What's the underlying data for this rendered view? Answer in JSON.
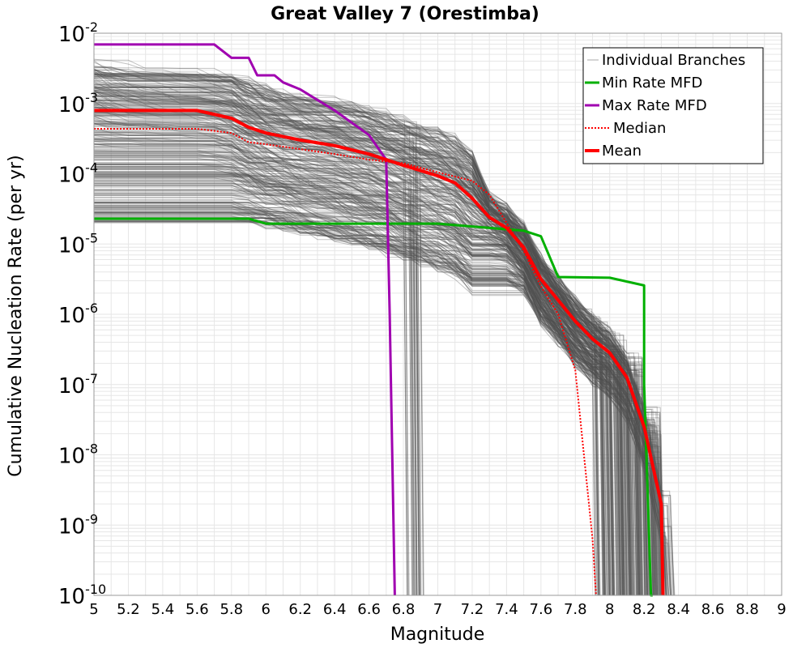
{
  "chart_data": {
    "type": "line",
    "title": "Great Valley 7 (Orestimba)",
    "xlabel": "Magnitude",
    "ylabel": "Cumulative Nucleation Rate (per yr)",
    "xlim": [
      5,
      9
    ],
    "ylim_log10": [
      -10,
      -2
    ],
    "x_ticks": [
      "5",
      "5.2",
      "5.4",
      "5.6",
      "5.8",
      "6",
      "6.2",
      "6.4",
      "6.6",
      "6.8",
      "7",
      "7.2",
      "7.4",
      "7.6",
      "7.8",
      "8",
      "8.2",
      "8.4",
      "8.6",
      "8.8",
      "9"
    ],
    "y_ticks": [
      {
        "base": "10",
        "exp": "-2"
      },
      {
        "base": "10",
        "exp": "-3"
      },
      {
        "base": "10",
        "exp": "-4"
      },
      {
        "base": "10",
        "exp": "-5"
      },
      {
        "base": "10",
        "exp": "-6"
      },
      {
        "base": "10",
        "exp": "-7"
      },
      {
        "base": "10",
        "exp": "-8"
      },
      {
        "base": "10",
        "exp": "-9"
      },
      {
        "base": "10",
        "exp": "-10"
      }
    ],
    "legend": {
      "position": "top-right",
      "entries": [
        "Individual Branches",
        "Min Rate MFD",
        "Max Rate MFD",
        "Median",
        "Mean"
      ]
    },
    "colors": {
      "branches": "#505050",
      "min": "#00b000",
      "max": "#a000b0",
      "median": "#ff0000",
      "mean": "#ff0000"
    },
    "branches": {
      "count": 360,
      "mag_start": 5.0,
      "rate_range_log10": [
        -4.7,
        -2.3
      ],
      "cluster_mags": [
        6.8,
        6.9,
        7.95,
        8.0,
        8.05,
        8.1,
        8.15,
        8.2,
        8.25,
        8.3
      ]
    },
    "series": [
      {
        "name": "Min Rate MFD",
        "x": [
          5.0,
          5.9,
          6.0,
          6.2,
          7.0,
          7.2,
          7.5,
          7.6,
          7.7,
          8.0,
          8.2,
          8.2,
          8.24,
          8.25
        ],
        "log10y": [
          -4.64,
          -4.64,
          -4.71,
          -4.71,
          -4.71,
          -4.75,
          -4.81,
          -4.89,
          -5.47,
          -5.48,
          -5.59,
          -7.0,
          -10.0,
          -10.0
        ]
      },
      {
        "name": "Max Rate MFD",
        "x": [
          5.0,
          5.7,
          5.8,
          5.9,
          5.95,
          6.05,
          6.1,
          6.2,
          6.4,
          6.6,
          6.7,
          6.72,
          6.75
        ],
        "log10y": [
          -2.16,
          -2.16,
          -2.35,
          -2.35,
          -2.6,
          -2.6,
          -2.7,
          -2.8,
          -3.1,
          -3.45,
          -3.8,
          -6.0,
          -10.0
        ]
      },
      {
        "name": "Median",
        "x": [
          5.0,
          5.6,
          5.8,
          5.9,
          6.0,
          6.2,
          6.4,
          6.6,
          6.8,
          7.0,
          7.2,
          7.3,
          7.4,
          7.5,
          7.6,
          7.7,
          7.8,
          7.85,
          7.9,
          7.92
        ],
        "log10y": [
          -3.36,
          -3.36,
          -3.42,
          -3.55,
          -3.58,
          -3.65,
          -3.72,
          -3.8,
          -3.85,
          -3.98,
          -4.1,
          -4.3,
          -4.7,
          -5.1,
          -5.6,
          -6.0,
          -6.8,
          -8.0,
          -9.2,
          -10.0
        ]
      },
      {
        "name": "Mean",
        "x": [
          5.0,
          5.6,
          5.8,
          5.9,
          6.0,
          6.2,
          6.4,
          6.6,
          6.8,
          7.0,
          7.1,
          7.2,
          7.3,
          7.4,
          7.5,
          7.6,
          7.7,
          7.8,
          7.9,
          8.0,
          8.1,
          8.2,
          8.3,
          8.31
        ],
        "log10y": [
          -3.1,
          -3.1,
          -3.21,
          -3.34,
          -3.42,
          -3.52,
          -3.6,
          -3.72,
          -3.88,
          -4.03,
          -4.13,
          -4.35,
          -4.62,
          -4.77,
          -5.05,
          -5.5,
          -5.8,
          -6.1,
          -6.35,
          -6.55,
          -6.9,
          -7.6,
          -8.7,
          -10.0
        ]
      }
    ]
  }
}
